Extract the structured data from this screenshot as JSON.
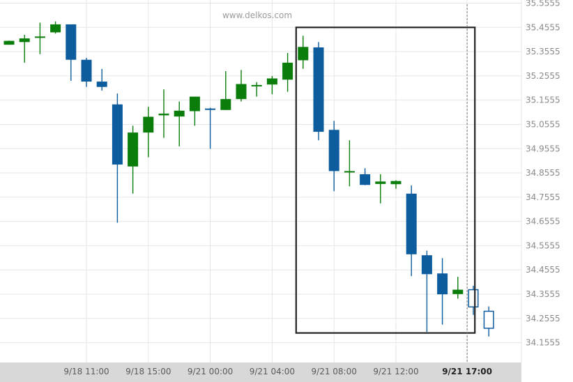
{
  "watermark": "www.delkos.com",
  "colors": {
    "bull": "#0a7d0a",
    "bear": "#0d5c9e",
    "grid": "#e6e6e6",
    "axis_band": "#d8d8d8",
    "highlight_box": "#222222",
    "projection": "#0d5c9e"
  },
  "chart_data": {
    "type": "candlestick",
    "title": "",
    "xlabel": "",
    "ylabel": "",
    "ylim": [
      34.1155,
      35.5555
    ],
    "y_ticks": [
      "35.5555",
      "35.4555",
      "35.3555",
      "35.2555",
      "35.1555",
      "35.0555",
      "34.9555",
      "34.8555",
      "34.7555",
      "34.6555",
      "34.5555",
      "34.4555",
      "34.3555",
      "34.2555",
      "34.1555"
    ],
    "x_ticks": [
      {
        "label": "9/18 11:00",
        "index": 5,
        "active": false
      },
      {
        "label": "9/18 15:00",
        "index": 9,
        "active": false
      },
      {
        "label": "9/21 00:00",
        "index": 13,
        "active": false
      },
      {
        "label": "9/21 04:00",
        "index": 17,
        "active": false
      },
      {
        "label": "9/21 08:00",
        "index": 21,
        "active": false
      },
      {
        "label": "9/21 12:00",
        "index": 25,
        "active": false
      },
      {
        "label": "9/21 17:00",
        "index": 29.6,
        "active": true
      }
    ],
    "candles": [
      {
        "o": 35.384,
        "h": 35.401,
        "l": 35.384,
        "c": 35.4
      },
      {
        "o": 35.395,
        "h": 35.425,
        "l": 35.31,
        "c": 35.41
      },
      {
        "o": 35.415,
        "h": 35.475,
        "l": 35.345,
        "c": 35.418
      },
      {
        "o": 35.435,
        "h": 35.48,
        "l": 35.43,
        "c": 35.468
      },
      {
        "o": 35.468,
        "h": 35.468,
        "l": 35.235,
        "c": 35.322
      },
      {
        "o": 35.322,
        "h": 35.33,
        "l": 35.21,
        "c": 35.232
      },
      {
        "o": 35.232,
        "h": 35.284,
        "l": 35.195,
        "c": 35.21
      },
      {
        "o": 35.138,
        "h": 35.183,
        "l": 34.65,
        "c": 34.89
      },
      {
        "o": 34.882,
        "h": 35.05,
        "l": 34.77,
        "c": 35.022
      },
      {
        "o": 35.022,
        "h": 35.128,
        "l": 34.92,
        "c": 35.087
      },
      {
        "o": 35.093,
        "h": 35.2,
        "l": 35.0,
        "c": 35.1
      },
      {
        "o": 35.088,
        "h": 35.15,
        "l": 34.965,
        "c": 35.112
      },
      {
        "o": 35.11,
        "h": 35.168,
        "l": 35.05,
        "c": 35.17
      },
      {
        "o": 35.121,
        "h": 35.124,
        "l": 34.955,
        "c": 35.117
      },
      {
        "o": 35.115,
        "h": 35.275,
        "l": 35.115,
        "c": 35.16
      },
      {
        "o": 35.16,
        "h": 35.28,
        "l": 35.15,
        "c": 35.222
      },
      {
        "o": 35.218,
        "h": 35.23,
        "l": 35.17,
        "c": 35.218
      },
      {
        "o": 35.22,
        "h": 35.255,
        "l": 35.18,
        "c": 35.245
      },
      {
        "o": 35.24,
        "h": 35.35,
        "l": 35.19,
        "c": 35.31
      },
      {
        "o": 35.32,
        "h": 35.421,
        "l": 35.285,
        "c": 35.375
      },
      {
        "o": 35.373,
        "h": 35.395,
        "l": 34.99,
        "c": 35.025
      },
      {
        "o": 35.033,
        "h": 35.07,
        "l": 34.78,
        "c": 34.863
      },
      {
        "o": 34.863,
        "h": 34.99,
        "l": 34.8,
        "c": 34.863
      },
      {
        "o": 34.85,
        "h": 34.875,
        "l": 34.805,
        "c": 34.806
      },
      {
        "o": 34.81,
        "h": 34.85,
        "l": 34.73,
        "c": 34.82
      },
      {
        "o": 34.809,
        "h": 34.825,
        "l": 34.79,
        "c": 34.822
      },
      {
        "o": 34.77,
        "h": 34.804,
        "l": 34.43,
        "c": 34.52
      },
      {
        "o": 34.516,
        "h": 34.535,
        "l": 34.2,
        "c": 34.438
      },
      {
        "o": 34.441,
        "h": 34.504,
        "l": 34.23,
        "c": 34.355
      },
      {
        "o": 34.356,
        "h": 34.427,
        "l": 34.337,
        "c": 34.374
      }
    ],
    "projection": [
      {
        "o": 34.374,
        "h": 34.39,
        "l": 34.27,
        "c": 34.303
      },
      {
        "o": 34.285,
        "h": 34.305,
        "l": 34.181,
        "c": 34.215
      }
    ],
    "highlight_range": {
      "start_index": 18.55,
      "end_index": 30.1,
      "y_top": 35.4555,
      "y_bottom": 34.1955
    },
    "current_time_index": 29.6
  }
}
